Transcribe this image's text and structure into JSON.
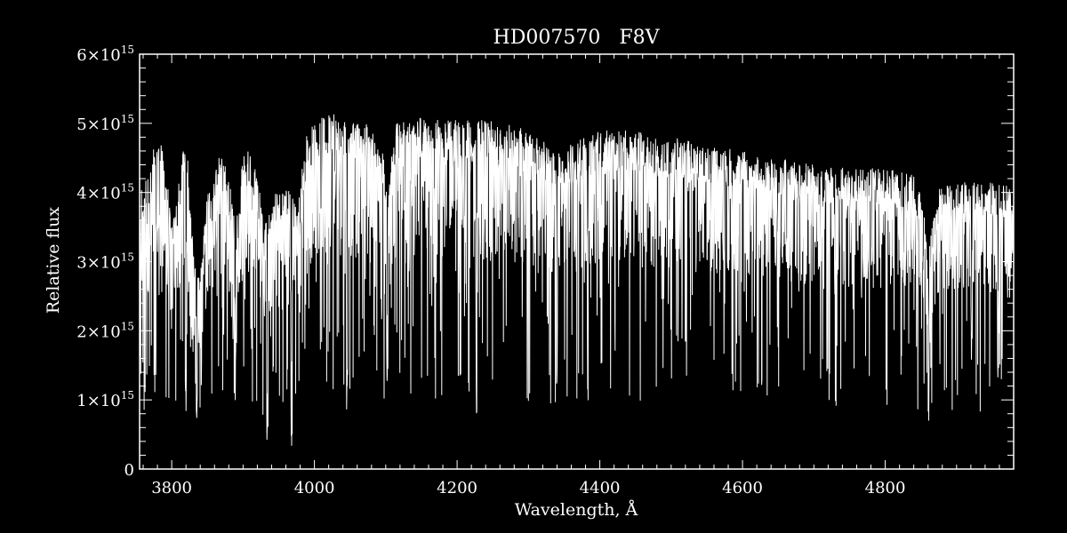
{
  "colors": {
    "background": "#000000",
    "foreground": "#ffffff"
  },
  "chart_data": {
    "type": "line",
    "title": "HD007570   F8V",
    "xlabel": "Wavelength, Å",
    "ylabel": "Relative flux",
    "xlim": [
      3755,
      4980
    ],
    "ylim": [
      0,
      6000000000000000.0
    ],
    "grid": false,
    "legend": "none",
    "x_ticks": [
      {
        "value": 3800,
        "label": "3800"
      },
      {
        "value": 4000,
        "label": "4000"
      },
      {
        "value": 4200,
        "label": "4200"
      },
      {
        "value": 4400,
        "label": "4400"
      },
      {
        "value": 4600,
        "label": "4600"
      },
      {
        "value": 4800,
        "label": "4800"
      }
    ],
    "y_ticks": [
      {
        "value": 0,
        "base": "0",
        "exp": ""
      },
      {
        "value": 1000000000000000.0,
        "base": "1×10",
        "exp": "15"
      },
      {
        "value": 2000000000000000.0,
        "base": "2×10",
        "exp": "15"
      },
      {
        "value": 3000000000000000.0,
        "base": "3×10",
        "exp": "15"
      },
      {
        "value": 4000000000000000.0,
        "base": "4×10",
        "exp": "15"
      },
      {
        "value": 5000000000000000.0,
        "base": "5×10",
        "exp": "15"
      },
      {
        "value": 6000000000000000.0,
        "base": "6×10",
        "exp": "15"
      }
    ],
    "continuum": [
      [
        3755,
        4000000000000000.0
      ],
      [
        3770,
        4300000000000000.0
      ],
      [
        3780,
        5000000000000000.0
      ],
      [
        3790,
        4600000000000000.0
      ],
      [
        3800,
        3500000000000000.0
      ],
      [
        3810,
        4200000000000000.0
      ],
      [
        3820,
        4900000000000000.0
      ],
      [
        3830,
        3200000000000000.0
      ],
      [
        3840,
        2800000000000000.0
      ],
      [
        3850,
        4000000000000000.0
      ],
      [
        3860,
        4400000000000000.0
      ],
      [
        3870,
        4600000000000000.0
      ],
      [
        3880,
        4300000000000000.0
      ],
      [
        3890,
        3500000000000000.0
      ],
      [
        3900,
        4600000000000000.0
      ],
      [
        3910,
        4700000000000000.0
      ],
      [
        3920,
        4300000000000000.0
      ],
      [
        3930,
        3500000000000000.0
      ],
      [
        3945,
        4000000000000000.0
      ],
      [
        3960,
        4200000000000000.0
      ],
      [
        3975,
        3800000000000000.0
      ],
      [
        3990,
        4900000000000000.0
      ],
      [
        4010,
        5100000000000000.0
      ],
      [
        4030,
        5150000000000000.0
      ],
      [
        4060,
        5050000000000000.0
      ],
      [
        4090,
        4900000000000000.0
      ],
      [
        4102,
        4200000000000000.0
      ],
      [
        4115,
        5000000000000000.0
      ],
      [
        4150,
        5100000000000000.0
      ],
      [
        4200,
        5050000000000000.0
      ],
      [
        4250,
        5050000000000000.0
      ],
      [
        4300,
        4900000000000000.0
      ],
      [
        4340,
        4600000000000000.0
      ],
      [
        4360,
        4700000000000000.0
      ],
      [
        4400,
        4900000000000000.0
      ],
      [
        4450,
        4900000000000000.0
      ],
      [
        4500,
        4800000000000000.0
      ],
      [
        4550,
        4700000000000000.0
      ],
      [
        4600,
        4600000000000000.0
      ],
      [
        4650,
        4500000000000000.0
      ],
      [
        4700,
        4400000000000000.0
      ],
      [
        4750,
        4350000000000000.0
      ],
      [
        4800,
        4350000000000000.0
      ],
      [
        4840,
        4250000000000000.0
      ],
      [
        4850,
        4000000000000000.0
      ],
      [
        4861,
        3200000000000000.0
      ],
      [
        4875,
        4100000000000000.0
      ],
      [
        4900,
        4150000000000000.0
      ],
      [
        4950,
        4150000000000000.0
      ],
      [
        4980,
        4100000000000000.0
      ]
    ],
    "absorption_lines": [
      {
        "x": 3934,
        "y": 300000000000000.0
      },
      {
        "x": 3968,
        "y": 300000000000000.0
      },
      {
        "x": 3835,
        "y": 600000000000000.0
      },
      {
        "x": 3820,
        "y": 550000000000000.0
      },
      {
        "x": 3889,
        "y": 900000000000000.0
      },
      {
        "x": 4046,
        "y": 750000000000000.0
      },
      {
        "x": 4102,
        "y": 1000000000000000.0
      },
      {
        "x": 4227,
        "y": 750000000000000.0
      },
      {
        "x": 4340,
        "y": 900000000000000.0
      },
      {
        "x": 4383,
        "y": 850000000000000.0
      },
      {
        "x": 4861,
        "y": 700000000000000.0
      },
      {
        "x": 4958,
        "y": 1300000000000000.0
      },
      {
        "x": 4921,
        "y": 1500000000000000.0
      }
    ]
  }
}
